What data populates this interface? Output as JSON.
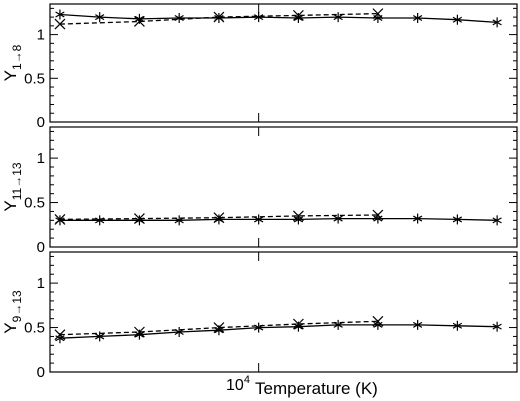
{
  "chart_data": [
    {
      "type": "line",
      "ylabel_main": "Υ",
      "ylabel_sub": "1→8",
      "ylim": [
        0,
        1.35
      ],
      "yticks": [
        0,
        0.5,
        1
      ],
      "ytick_labels": [
        "0",
        "0.5",
        "1"
      ],
      "x": [
        3.0,
        3.2,
        3.4,
        3.6,
        3.8,
        4.0,
        4.2,
        4.4,
        4.6,
        4.8,
        5.0,
        5.2
      ],
      "series": [
        {
          "style": "solid",
          "marker": "asterisk",
          "color": "#000000",
          "values": [
            1.23,
            1.2,
            1.18,
            1.19,
            1.19,
            1.2,
            1.19,
            1.2,
            1.19,
            1.19,
            1.17,
            1.14
          ]
        },
        {
          "style": "dashed",
          "marker": "x",
          "color": "#000000",
          "values": [
            1.12,
            null,
            1.15,
            null,
            1.2,
            null,
            1.22,
            null,
            1.24,
            null,
            null,
            null
          ]
        }
      ]
    },
    {
      "type": "line",
      "ylabel_main": "Υ",
      "ylabel_sub": "11→13",
      "ylim": [
        0,
        1.35
      ],
      "yticks": [
        0,
        0.5,
        1
      ],
      "ytick_labels": [
        "0",
        "0.5",
        "1"
      ],
      "x": [
        3.0,
        3.2,
        3.4,
        3.6,
        3.8,
        4.0,
        4.2,
        4.4,
        4.6,
        4.8,
        5.0,
        5.2
      ],
      "series": [
        {
          "style": "solid",
          "marker": "asterisk",
          "color": "#000000",
          "values": [
            0.3,
            0.3,
            0.3,
            0.3,
            0.31,
            0.31,
            0.31,
            0.32,
            0.32,
            0.32,
            0.31,
            0.3
          ]
        },
        {
          "style": "dashed",
          "marker": "x",
          "color": "#000000",
          "values": [
            0.31,
            null,
            0.32,
            null,
            0.33,
            null,
            0.35,
            null,
            0.36,
            null,
            null,
            null
          ]
        }
      ]
    },
    {
      "type": "line",
      "ylabel_main": "Υ",
      "ylabel_sub": "9→13",
      "ylim": [
        0,
        1.35
      ],
      "yticks": [
        0,
        0.5,
        1
      ],
      "ytick_labels": [
        "0",
        "0.5",
        "1"
      ],
      "x": [
        3.0,
        3.2,
        3.4,
        3.6,
        3.8,
        4.0,
        4.2,
        4.4,
        4.6,
        4.8,
        5.0,
        5.2
      ],
      "series": [
        {
          "style": "solid",
          "marker": "asterisk",
          "color": "#000000",
          "values": [
            0.38,
            0.4,
            0.42,
            0.45,
            0.47,
            0.5,
            0.51,
            0.53,
            0.53,
            0.53,
            0.52,
            0.51
          ]
        },
        {
          "style": "dashed",
          "marker": "x",
          "color": "#000000",
          "values": [
            0.42,
            null,
            0.45,
            null,
            0.5,
            null,
            0.54,
            null,
            0.57,
            null,
            null,
            null
          ]
        }
      ]
    }
  ],
  "x_axis": {
    "xlim": [
      2.95,
      5.3
    ],
    "label_tick": "10",
    "label_tick_sup": "4",
    "xlabel": "Temperature (K)"
  }
}
